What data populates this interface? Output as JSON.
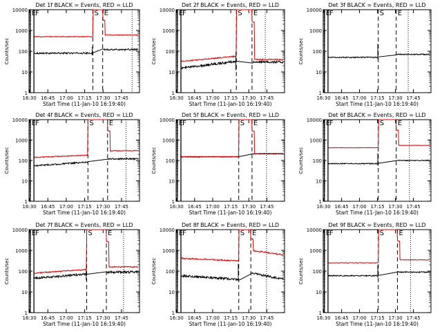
{
  "figure": {
    "background": "#ffffff",
    "colors": {
      "events": "#000000",
      "lld": "#e00000"
    }
  },
  "chart_data": [
    {
      "type": "line",
      "title": "Det 1f BLACK = Events, RED = LLD",
      "xlabel": "Start Time (11-Jan-10 16:19:40)",
      "ylabel": "Counts/sec",
      "ylog": true,
      "ylim": [
        1,
        10000
      ],
      "yticks": [
        "1",
        "10",
        "100",
        "1000",
        "10000"
      ],
      "xticks": [
        "16:30",
        "16:45",
        "17:00",
        "17:15",
        "17:30",
        "17:45"
      ],
      "xlim_minutes": [
        10,
        100
      ],
      "markers": [
        {
          "label": "E",
          "t": 11,
          "style": "solid"
        },
        {
          "label": "F",
          "t": 14,
          "style": "solid"
        },
        {
          "label": "S",
          "t": 62,
          "style": "dashed"
        },
        {
          "label": "E",
          "t": 70,
          "style": "dashed"
        },
        {
          "label": "",
          "t": 94,
          "style": "dotted"
        }
      ],
      "gap": [
        10,
        14
      ],
      "series": [
        {
          "color": "#000000",
          "base": 80,
          "peak": null,
          "spike": 110,
          "tail": 120,
          "noise": 0.08
        },
        {
          "color": "#e00000",
          "base": 500,
          "peak": 10000,
          "spike": null,
          "tail": 600,
          "noise": 0.04
        }
      ]
    },
    {
      "type": "line",
      "title": "Det 2f BLACK = Events, RED = LLD",
      "xlabel": "Start Time (11-Jan-10 16:19:40)",
      "ylabel": "Counts/sec",
      "ylog": true,
      "ylim": [
        1,
        10000
      ],
      "yticks": [
        "1",
        "10",
        "100",
        "1000",
        "10000"
      ],
      "xticks": [
        "16:30",
        "16:45",
        "17:00",
        "17:15",
        "17:30",
        "17:45"
      ],
      "xlim_minutes": [
        10,
        100
      ],
      "markers": [
        {
          "label": "E",
          "t": 11,
          "style": "solid"
        },
        {
          "label": "F",
          "t": 14,
          "style": "solid"
        },
        {
          "label": "S",
          "t": 60,
          "style": "dashed"
        },
        {
          "label": "E",
          "t": 73,
          "style": "dashed"
        },
        {
          "label": "",
          "t": 84,
          "style": "dotted"
        }
      ],
      "gap": [
        10,
        14
      ],
      "series": [
        {
          "color": "#000000",
          "base": 15,
          "peak": null,
          "spike": 60,
          "tail": 30,
          "noise": 0.12,
          "drift": 2.2
        },
        {
          "color": "#e00000",
          "base": 32,
          "peak": 10000,
          "spike": null,
          "tail": 40,
          "noise": 0.06,
          "drift": 1.8
        }
      ]
    },
    {
      "type": "line",
      "title": "Det 3f BLACK = Events, RED = LLD",
      "xlabel": "Start Time (11-Jan-10 16:19:40)",
      "ylabel": "Counts/sec",
      "ylog": true,
      "ylim": [
        1,
        10000
      ],
      "yticks": [
        "1",
        "10",
        "100",
        "1000",
        "10000"
      ],
      "xticks": [
        "16:30",
        "16:45",
        "17:00",
        "17:15",
        "17:30",
        "17:45"
      ],
      "xlim_minutes": [
        10,
        100
      ],
      "markers": [
        {
          "label": "E",
          "t": 11,
          "style": "solid"
        },
        {
          "label": "F",
          "t": 14,
          "style": "solid"
        },
        {
          "label": "S",
          "t": 56,
          "style": "dashed"
        },
        {
          "label": "E",
          "t": 71,
          "style": "dashed"
        },
        {
          "label": "",
          "t": 81,
          "style": "dotted"
        }
      ],
      "gap": [
        10,
        14
      ],
      "series": [
        {
          "color": "#000000",
          "base": 50,
          "peak": null,
          "spike": 150,
          "tail": 70,
          "noise": 0.06
        }
      ]
    },
    {
      "type": "line",
      "title": "Det 4f BLACK = Events, RED = LLD",
      "xlabel": "Start Time (11-Jan-10 16:19:40)",
      "ylabel": "Counts/sec",
      "ylog": true,
      "ylim": [
        1,
        10000
      ],
      "yticks": [
        "1",
        "10",
        "100",
        "1000",
        "10000"
      ],
      "xticks": [
        "16:30",
        "16:45",
        "17:00",
        "17:15",
        "17:30",
        "17:45"
      ],
      "xlim_minutes": [
        10,
        100
      ],
      "markers": [
        {
          "label": "E",
          "t": 11,
          "style": "solid"
        },
        {
          "label": "F",
          "t": 14,
          "style": "solid"
        },
        {
          "label": "S",
          "t": 58,
          "style": "dashed"
        },
        {
          "label": "E",
          "t": 74,
          "style": "dashed"
        },
        {
          "label": "",
          "t": 89,
          "style": "dotted"
        }
      ],
      "gap": [
        10,
        14
      ],
      "series": [
        {
          "color": "#000000",
          "base": 55,
          "peak": null,
          "spike": null,
          "tail": 120,
          "noise": 0.08,
          "drift": 1.5
        },
        {
          "color": "#e00000",
          "base": 140,
          "peak": 10000,
          "spike": null,
          "tail": 300,
          "noise": 0.05,
          "drift": 1.3
        }
      ]
    },
    {
      "type": "line",
      "title": "Det 5f BLACK = Events, RED = LLD",
      "xlabel": "Start Time (11-Jan-10 16:19:40)",
      "ylabel": "Counts/sec",
      "ylog": true,
      "ylim": [
        1,
        10000
      ],
      "yticks": [
        "1",
        "10",
        "100",
        "1000",
        "10000"
      ],
      "xticks": [
        "16:30",
        "16:45",
        "17:00",
        "17:15",
        "17:30",
        "17:45"
      ],
      "xlim_minutes": [
        10,
        100
      ],
      "markers": [
        {
          "label": "E",
          "t": 11,
          "style": "solid"
        },
        {
          "label": "F",
          "t": 14,
          "style": "solid"
        },
        {
          "label": "S",
          "t": 62,
          "style": "dashed"
        },
        {
          "label": "E",
          "t": 73,
          "style": "dashed"
        },
        {
          "label": "",
          "t": 85,
          "style": "dotted"
        }
      ],
      "gap": [
        10,
        14
      ],
      "series": [
        {
          "color": "#000000",
          "base": 150,
          "peak": null,
          "spike": 80,
          "tail": 210,
          "noise": 0.03
        },
        {
          "color": "#e00000",
          "base": 155,
          "peak": 10000,
          "spike": null,
          "tail": 220,
          "noise": 0.02
        }
      ]
    },
    {
      "type": "line",
      "title": "Det 6f BLACK = Events, RED = LLD",
      "xlabel": "Start Time (11-Jan-10 16:19:40)",
      "ylabel": "Counts/sec",
      "ylog": true,
      "ylim": [
        1,
        10000
      ],
      "yticks": [
        "1",
        "10",
        "100",
        "1000",
        "10000"
      ],
      "xticks": [
        "16:30",
        "16:45",
        "17:00",
        "17:15",
        "17:30",
        "17:45"
      ],
      "xlim_minutes": [
        10,
        100
      ],
      "markers": [
        {
          "label": "E",
          "t": 11,
          "style": "solid"
        },
        {
          "label": "F",
          "t": 14,
          "style": "solid"
        },
        {
          "label": "S",
          "t": 56,
          "style": "dashed"
        },
        {
          "label": "E",
          "t": 71,
          "style": "dashed"
        },
        {
          "label": "",
          "t": 82,
          "style": "dotted"
        }
      ],
      "gap": [
        10,
        14
      ],
      "series": [
        {
          "color": "#000000",
          "base": 70,
          "peak": null,
          "spike": 150,
          "tail": 100,
          "noise": 0.05
        },
        {
          "color": "#e00000",
          "base": 420,
          "peak": 10000,
          "spike": null,
          "tail": 550,
          "noise": 0.02
        }
      ]
    },
    {
      "type": "line",
      "title": "Det 7f BLACK = Events, RED = LLD",
      "xlabel": "Start Time (11-Jan-10 16:19:40)",
      "ylabel": "Counts/sec",
      "ylog": true,
      "ylim": [
        1,
        10000
      ],
      "yticks": [
        "1",
        "10",
        "100",
        "1000",
        "10000"
      ],
      "xticks": [
        "16:30",
        "16:45",
        "17:00",
        "17:15",
        "17:30",
        "17:45"
      ],
      "xlim_minutes": [
        10,
        100
      ],
      "markers": [
        {
          "label": "E",
          "t": 11,
          "style": "solid"
        },
        {
          "label": "F",
          "t": 14,
          "style": "solid"
        },
        {
          "label": "S",
          "t": 57,
          "style": "dashed"
        },
        {
          "label": "E",
          "t": 73,
          "style": "dashed"
        },
        {
          "label": "",
          "t": 87,
          "style": "dotted"
        }
      ],
      "gap": [
        10,
        14
      ],
      "series": [
        {
          "color": "#000000",
          "base": 45,
          "peak": null,
          "spike": 100,
          "tail": 90,
          "noise": 0.12,
          "drift": 1.6
        },
        {
          "color": "#e00000",
          "base": 80,
          "peak": 10000,
          "spike": null,
          "tail": 160,
          "noise": 0.06,
          "drift": 1.5
        }
      ]
    },
    {
      "type": "line",
      "title": "Det 8f BLACK = Events, RED = LLD",
      "xlabel": "Start Time (11-Jan-10 16:19:40)",
      "ylabel": "Counts/sec",
      "ylog": true,
      "ylim": [
        1,
        10000
      ],
      "yticks": [
        "1",
        "10",
        "100",
        "1000",
        "10000"
      ],
      "xticks": [
        "16:30",
        "16:45",
        "17:00",
        "17:15",
        "17:30",
        "17:45"
      ],
      "xlim_minutes": [
        10,
        100
      ],
      "markers": [
        {
          "label": "E",
          "t": 11,
          "style": "solid"
        },
        {
          "label": "F",
          "t": 14,
          "style": "solid"
        },
        {
          "label": "S",
          "t": 62,
          "style": "dashed"
        },
        {
          "label": "E",
          "t": 72,
          "style": "dashed"
        },
        {
          "label": "",
          "t": 85,
          "style": "dotted"
        }
      ],
      "gap": [
        10,
        14
      ],
      "series": [
        {
          "color": "#000000",
          "base": 60,
          "peak": null,
          "spike": 150,
          "tail": 80,
          "noise": 0.12,
          "decay": 0.5
        },
        {
          "color": "#e00000",
          "base": 420,
          "peak": 10000,
          "spike": null,
          "tail": 1000,
          "noise": 0.07,
          "decay": 0.6
        }
      ]
    },
    {
      "type": "line",
      "title": "Det 9f BLACK = Events, RED = LLD",
      "xlabel": "Start Time (11-Jan-10 16:19:40)",
      "ylabel": "Counts/sec",
      "ylog": true,
      "ylim": [
        1,
        10000
      ],
      "yticks": [
        "1",
        "10",
        "100",
        "1000",
        "10000"
      ],
      "xticks": [
        "16:30",
        "16:45",
        "17:00",
        "17:15",
        "17:30",
        "17:45"
      ],
      "xlim_minutes": [
        10,
        100
      ],
      "markers": [
        {
          "label": "E",
          "t": 11,
          "style": "solid"
        },
        {
          "label": "F",
          "t": 14,
          "style": "solid"
        },
        {
          "label": "S",
          "t": 56,
          "style": "dashed"
        },
        {
          "label": "E",
          "t": 72,
          "style": "dashed"
        },
        {
          "label": "",
          "t": 83,
          "style": "dotted"
        }
      ],
      "gap": [
        10,
        14
      ],
      "series": [
        {
          "color": "#000000",
          "base": 60,
          "peak": null,
          "spike": 130,
          "tail": 90,
          "noise": 0.06
        },
        {
          "color": "#e00000",
          "base": 250,
          "peak": 10000,
          "spike": null,
          "tail": 350,
          "noise": 0.03
        }
      ]
    }
  ]
}
